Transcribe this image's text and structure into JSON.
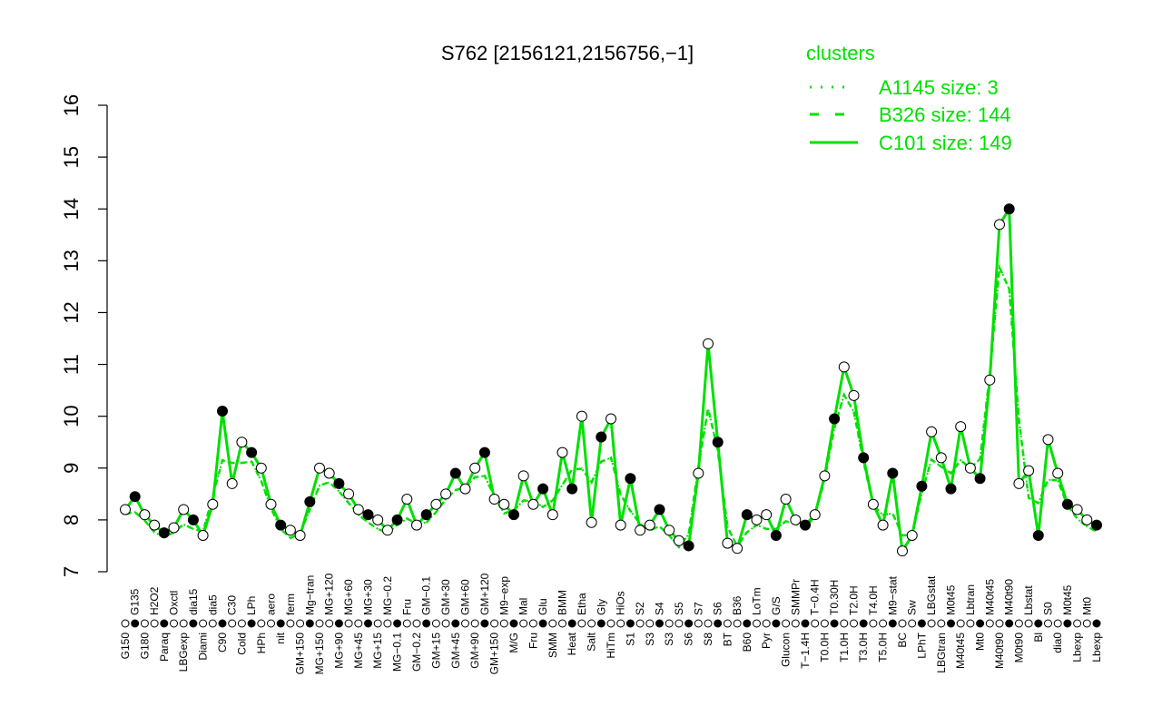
{
  "chart_data": {
    "type": "line",
    "title": "S762 [2156121,2156756,−1]",
    "xlabel": "",
    "ylabel": "",
    "ylim": [
      7,
      16
    ],
    "yticks": [
      7,
      8,
      9,
      10,
      11,
      12,
      13,
      14,
      15,
      16
    ],
    "grid": false,
    "legend": {
      "title": "clusters",
      "placement": "top-right",
      "entries": [
        {
          "label": "A1145 size: 3",
          "style": "dotted"
        },
        {
          "label": "B326 size: 144",
          "style": "dashed"
        },
        {
          "label": "C101 size: 149",
          "style": "solid"
        }
      ]
    },
    "line_color": "#00e000",
    "categories": [
      "G150",
      "G135",
      "G180",
      "H2O2",
      "Paraq",
      "Oxctl",
      "LBGexp",
      "dia15",
      "Diami",
      "dia5",
      "C90",
      "C30",
      "Cold",
      "LPh",
      "HPh",
      "aero",
      "nit",
      "ferm",
      "GM+150",
      "Mg−tran",
      "MG+150",
      "MG+120",
      "MG+90",
      "MG+60",
      "MG+45",
      "MG+30",
      "MG+15",
      "MG−0.2",
      "MG−0.1",
      "Fru",
      "GM−0.2",
      "GM−0.1",
      "GM+15",
      "GM+30",
      "GM+45",
      "GM+60",
      "GM+90",
      "GM+120",
      "GM+150",
      "M9−exp",
      "M/G",
      "Mal",
      "Fru",
      "Glu",
      "SMM",
      "BMM",
      "Heat",
      "Etha",
      "Salt",
      "Gly",
      "HiTm",
      "HiOs",
      "S1",
      "S2",
      "S3",
      "S4",
      "S3",
      "S5",
      "S6",
      "S7",
      "S8",
      "S6",
      "BT",
      "B36",
      "B60",
      "LoTm",
      "Pyr",
      "G/S",
      "Glucon",
      "SMMPr",
      "T−1.4H",
      "T−0.4H",
      "T0.0H",
      "T0.30H",
      "T1.0H",
      "T2.0H",
      "T3.0H",
      "T4.0H",
      "T5.0H",
      "M9−stat",
      "BC",
      "Sw",
      "LPhT",
      "LBGstat",
      "LBGtran",
      "M0t45",
      "M40t45",
      "Lbtran",
      "Mt0",
      "M40t45",
      "M40t90",
      "M40t90",
      "M0t90",
      "Lbstat",
      "Bl",
      "S0",
      "dia0",
      "M0t45",
      "Lbexp",
      "Mt0",
      "Lbexp"
    ],
    "values": [
      8.2,
      8.45,
      8.1,
      7.9,
      7.75,
      7.85,
      8.2,
      8.0,
      7.7,
      8.3,
      10.1,
      8.7,
      9.5,
      9.3,
      9.0,
      8.3,
      7.9,
      7.8,
      7.7,
      8.35,
      9.0,
      8.9,
      8.7,
      8.5,
      8.2,
      8.1,
      8.0,
      7.8,
      8.0,
      8.4,
      7.9,
      8.1,
      8.3,
      8.5,
      8.9,
      8.6,
      9.0,
      9.3,
      8.4,
      8.3,
      8.1,
      8.85,
      8.3,
      8.6,
      8.1,
      9.3,
      8.6,
      10.0,
      7.95,
      9.6,
      9.95,
      7.9,
      8.8,
      7.8,
      7.9,
      8.2,
      7.8,
      7.6,
      7.5,
      8.9,
      11.4,
      9.5,
      7.55,
      7.45,
      8.1,
      8.0,
      8.1,
      7.7,
      8.4,
      8.0,
      7.9,
      8.1,
      8.85,
      9.95,
      10.95,
      10.4,
      9.2,
      8.3,
      7.9,
      8.9,
      7.4,
      7.7,
      8.65,
      9.7,
      9.2,
      8.6,
      9.8,
      9.0,
      8.8,
      10.7,
      13.7,
      14.0,
      8.7,
      8.95,
      7.7,
      9.55,
      8.9,
      8.3,
      8.2,
      8.0,
      7.9
    ]
  }
}
